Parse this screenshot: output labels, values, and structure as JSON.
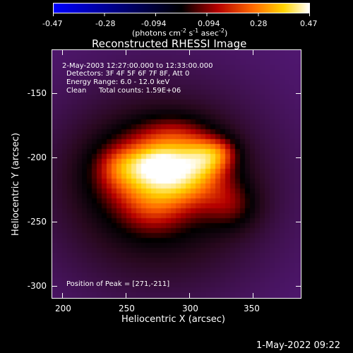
{
  "colorbar": {
    "ticks": [
      "-0.47",
      "-0.28",
      "-0.094",
      "0.094",
      "0.28",
      "0.47"
    ],
    "unit_main": "(photons cm",
    "unit_exp1": "-2",
    "unit_mid": " s",
    "unit_exp2": "-1",
    "unit_mid2": " asec",
    "unit_exp3": "-2",
    "unit_end": ")"
  },
  "plot": {
    "title": "Reconstructed RHESSI Image",
    "xlabel": "Heliocentric X (arcsec)",
    "ylabel": "Heliocentric Y (arcsec)",
    "xticks": [
      "200",
      "250",
      "300",
      "350"
    ],
    "yticks": [
      "-150",
      "-200",
      "-250",
      "-300"
    ],
    "info_time": "2-May-2003 12:27:00.000 to 12:33:00.000",
    "info_detectors": "Detectors: 3F 4F 5F 6F 7F 8F, Att 0",
    "info_energy": "Energy Range: 6.0 - 12.0 keV",
    "info_method": "Clean",
    "info_counts": "Total counts: 1.59E+06",
    "peak": "Position of Peak = [271,-211]"
  },
  "footer": {
    "date": "1-May-2022 09:22"
  },
  "chart_data": {
    "type": "heatmap",
    "title": "Reconstructed RHESSI Image",
    "xlabel": "Heliocentric X (arcsec)",
    "ylabel": "Heliocentric Y (arcsec)",
    "xlim": [
      192,
      388
    ],
    "ylim": [
      -310,
      -114
    ],
    "colorbar_range": [
      -0.47,
      0.47
    ],
    "peak_position": [
      271,
      -211
    ],
    "colors": {
      "low": "#0000ff",
      "zero": "#000000",
      "mid": "#c80000",
      "high": "#ffffff",
      "background": "#5a1b86"
    }
  }
}
